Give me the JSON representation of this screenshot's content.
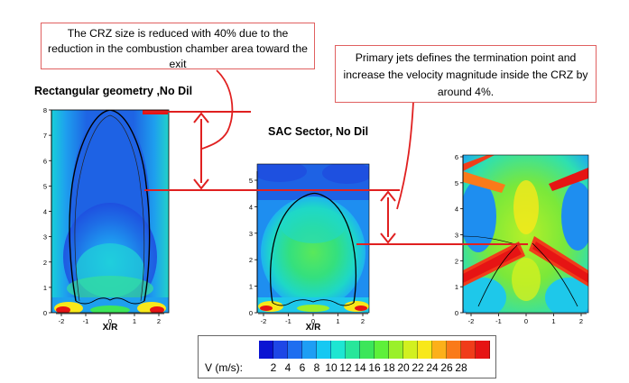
{
  "callouts": {
    "crz_size": "The CRZ size is reduced with 40% due to the reduction in the combustion chamber area toward the exit",
    "primary_jets": "Primary jets defines the termination point and increase the velocity magnitude inside the CRZ by around 4%."
  },
  "headings": {
    "rectangular": "Rectangular geometry ,No Dil",
    "sac_sector": "SAC Sector, No Dil"
  },
  "plots": {
    "rectangular": {
      "xlabel": "X/R",
      "xticks": [
        "-2",
        "-1",
        "0",
        "1",
        "2"
      ],
      "yticks": [
        "0",
        "1",
        "2",
        "3",
        "4",
        "5",
        "6",
        "7",
        "8"
      ]
    },
    "sac": {
      "xlabel": "X/R",
      "xticks": [
        "-2",
        "-1",
        "0",
        "1",
        "2"
      ],
      "yticks": [
        "0",
        "1",
        "2",
        "3",
        "4",
        "5"
      ]
    },
    "primary": {
      "xticks": [
        "-2",
        "-1",
        "0",
        "1",
        "2"
      ],
      "yticks": [
        "0",
        "1",
        "2",
        "3",
        "4",
        "5",
        "6"
      ]
    }
  },
  "legend": {
    "title": "V (m/s):",
    "ticks": [
      "2",
      "4",
      "6",
      "8",
      "10",
      "12",
      "14",
      "16",
      "18",
      "20",
      "22",
      "24",
      "26",
      "28"
    ],
    "colors": [
      "#0a14d2",
      "#1e46e6",
      "#1e6ef0",
      "#1e9ef4",
      "#16c8f2",
      "#1ee6d2",
      "#28e69a",
      "#3ce65a",
      "#5ef03a",
      "#9af02a",
      "#d2f020",
      "#f8e81a",
      "#fcb01a",
      "#fa7a1a",
      "#f03c1a",
      "#e61414"
    ]
  },
  "colors": {
    "annotation_red": "#e02020",
    "callout_border": "#e06060"
  }
}
